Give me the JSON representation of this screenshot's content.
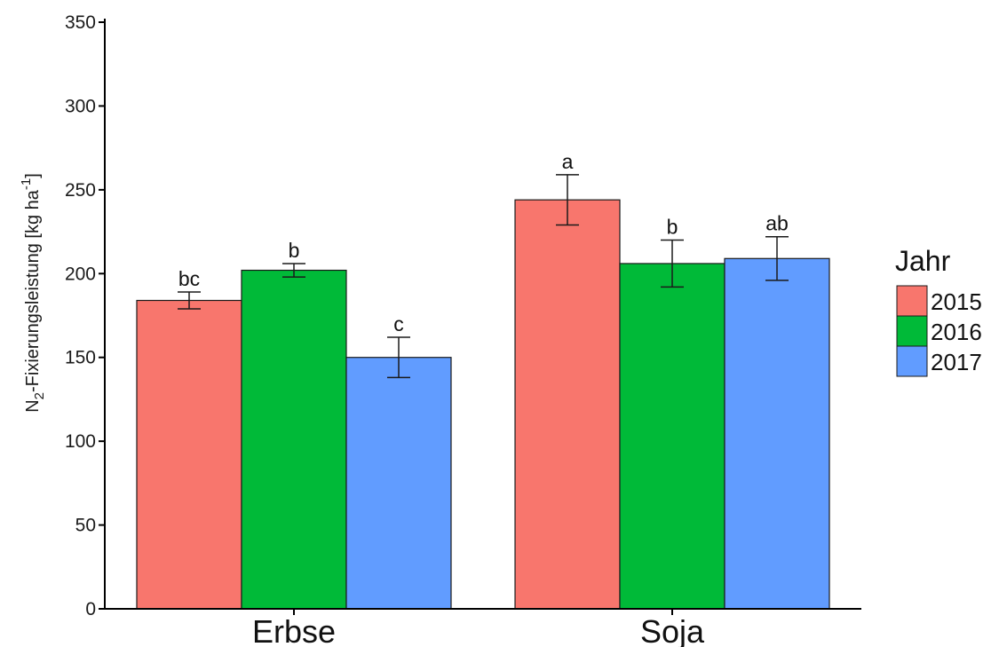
{
  "chart_data": {
    "type": "bar",
    "categories": [
      "Erbse",
      "Soja"
    ],
    "series": [
      {
        "name": "2015",
        "color": "#f8766d",
        "values": [
          184,
          244
        ],
        "error": [
          5,
          15
        ],
        "labels": [
          "bc",
          "a"
        ]
      },
      {
        "name": "2016",
        "color": "#00ba38",
        "values": [
          202,
          206
        ],
        "error": [
          4,
          14
        ],
        "labels": [
          "b",
          "b"
        ]
      },
      {
        "name": "2017",
        "color": "#619cff",
        "values": [
          150,
          209
        ],
        "error": [
          12,
          13
        ],
        "labels": [
          "c",
          "ab"
        ]
      }
    ],
    "ylabel_main": "N",
    "ylabel_sub": "2",
    "ylabel_rest": "-Fixierungsleistung [kg ha",
    "ylabel_sup": "-1",
    "ylabel_close": "]",
    "ylim": [
      0,
      350
    ],
    "yticks": [
      0,
      50,
      100,
      150,
      200,
      250,
      300,
      350
    ],
    "legend_title": "Jahr",
    "legend_position": "right",
    "grid": false
  }
}
